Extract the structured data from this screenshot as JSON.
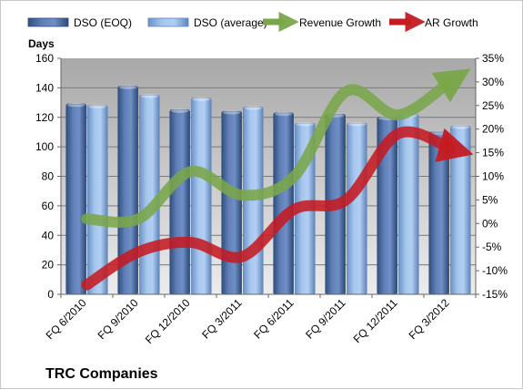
{
  "chart_data": {
    "type": "bar",
    "title": "",
    "company": "TRC Companies",
    "ylabel": "Days",
    "ylim": [
      0,
      160
    ],
    "y_ticks": [
      "0",
      "20",
      "40",
      "60",
      "80",
      "100",
      "120",
      "140",
      "160"
    ],
    "y2lim": [
      -15,
      35
    ],
    "y2_ticks": [
      "-15%",
      "-10%",
      "-5%",
      "0%",
      "5%",
      "10%",
      "15%",
      "20%",
      "25%",
      "30%",
      "35%"
    ],
    "categories": [
      "FQ 6/2010",
      "FQ 9/2010",
      "FQ 12/2010",
      "FQ 3/2011",
      "FQ 6/2011",
      "FQ 9/2011",
      "FQ 12/2011",
      "FQ 3/2012"
    ],
    "series": [
      {
        "name": "DSO (EOQ)",
        "type": "bar",
        "axis": "left",
        "color": "#4f6fa8",
        "values": [
          129,
          141,
          125,
          124,
          123,
          122,
          120,
          110
        ]
      },
      {
        "name": "DSO (average)",
        "type": "bar",
        "axis": "left",
        "color": "#8fb3e0",
        "values": [
          128,
          135,
          133,
          127,
          116,
          116,
          122,
          114
        ]
      },
      {
        "name": "Revenue Growth",
        "type": "line",
        "axis": "right",
        "color": "#77a045",
        "values": [
          1,
          1,
          11,
          6,
          10,
          28,
          23,
          30
        ]
      },
      {
        "name": "AR Growth",
        "type": "line",
        "axis": "right",
        "color": "#c0141c",
        "values": [
          -13,
          -6,
          -4,
          -7,
          3,
          5,
          19,
          16
        ]
      }
    ],
    "grid": "horizontal",
    "legend": "top"
  }
}
